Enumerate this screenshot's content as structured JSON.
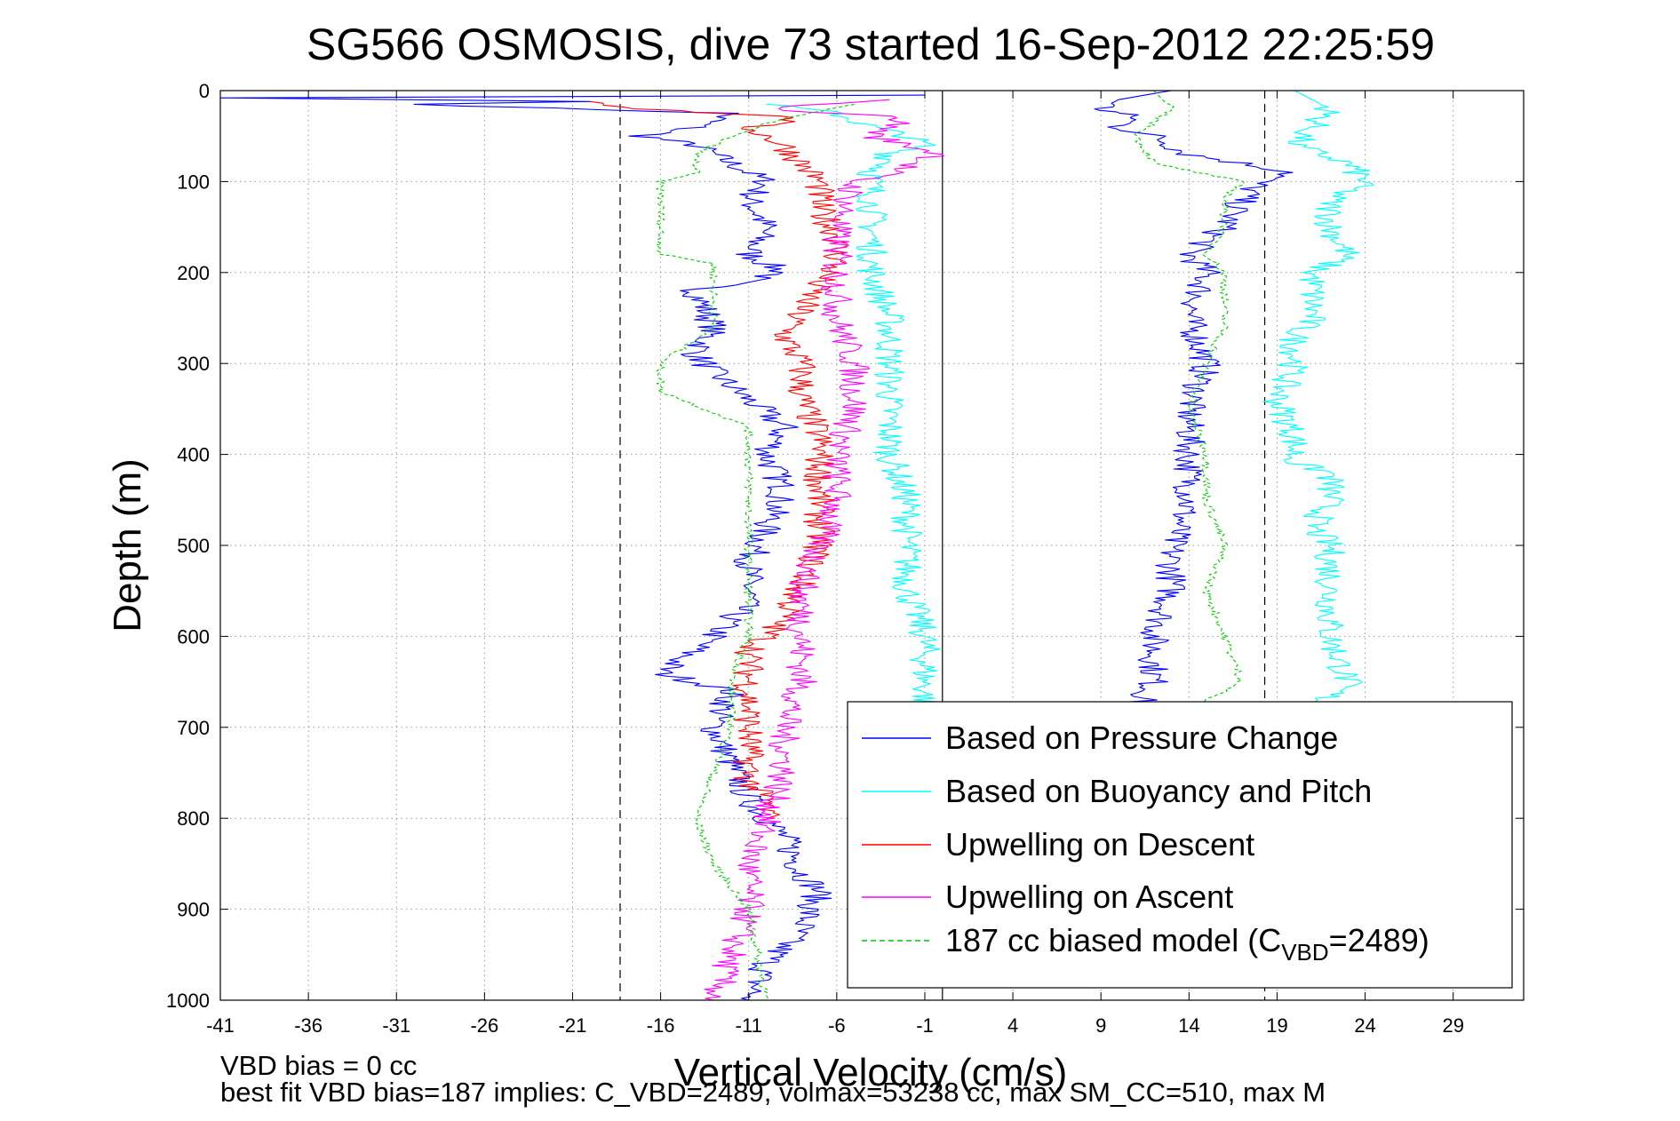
{
  "chart_data": {
    "type": "line",
    "title": "SG566 OSMOSIS, dive 73 started 16-Sep-2012 22:25:59",
    "xlabel": "Vertical Velocity (cm/s)",
    "ylabel": "Depth (m)",
    "xlim": [
      -41,
      33
    ],
    "ylim": [
      1000,
      0
    ],
    "y_reversed": true,
    "xticks": [
      -41,
      -36,
      -31,
      -26,
      -21,
      -16,
      -11,
      -6,
      -1,
      4,
      9,
      14,
      19,
      24,
      29
    ],
    "yticks": [
      0,
      100,
      200,
      300,
      400,
      500,
      600,
      700,
      800,
      900,
      1000
    ],
    "grid": true,
    "legend_position": "bottom-right",
    "vertical_lines": [
      {
        "x": -18.3,
        "style": "dashed",
        "color": "#000000"
      },
      {
        "x": 0,
        "style": "solid",
        "color": "#000000"
      },
      {
        "x": 18.3,
        "style": "dashed",
        "color": "#000000"
      }
    ],
    "series": [
      {
        "name": "Based on Pressure Change",
        "color": "#0000ff",
        "style": "solid",
        "segments": [
          {
            "depth": [
              5,
              8,
              12,
              15,
              25,
              40,
              50,
              60,
              80,
              100,
              120,
              150,
              180,
              200,
              220,
              260,
              290,
              310,
              340,
              370,
              400,
              440,
              480,
              520,
              560,
              600,
              640,
              660,
              700,
              740,
              780,
              820,
              860,
              880,
              920,
              960,
              1000
            ],
            "x": [
              -1,
              -41,
              -20,
              -30,
              -12,
              -14,
              -17,
              -14,
              -12,
              -10,
              -11,
              -10,
              -11,
              -9,
              -14,
              -13,
              -14,
              -13,
              -11,
              -9,
              -10,
              -9,
              -10,
              -11,
              -11,
              -13,
              -16,
              -12,
              -13,
              -12,
              -11,
              -9,
              -8,
              -7,
              -8,
              -10,
              -11
            ]
          },
          {
            "depth": [
              0,
              10,
              20,
              25,
              30,
              40,
              50,
              70,
              90,
              100,
              120,
              150,
              180,
              200,
              250,
              300,
              350,
              400,
              450,
              500,
              550,
              600,
              650,
              680
            ],
            "x": [
              13,
              10,
              9,
              10,
              11,
              10,
              12,
              14,
              20,
              18,
              17,
              16,
              14,
              15,
              14,
              15,
              14,
              14,
              14,
              13,
              13,
              12,
              12,
              11
            ]
          }
        ]
      },
      {
        "name": "Based on Buoyancy and Pitch",
        "color": "#00ffff",
        "style": "solid",
        "segments": [
          {
            "depth": [
              15,
              25,
              40,
              50,
              60,
              70,
              80,
              90,
              120,
              160,
              200,
              250,
              300,
              350,
              370,
              400,
              450,
              500,
              550,
              600,
              650,
              680
            ],
            "x": [
              -10,
              -6,
              -4,
              -2,
              -1,
              -3,
              -3,
              -4,
              -4,
              -4,
              -4,
              -3,
              -3,
              -3,
              -3,
              -3,
              -2,
              -2,
              -2,
              -1,
              -1,
              -1
            ]
          },
          {
            "depth": [
              0,
              20,
              40,
              60,
              80,
              100,
              120,
              150,
              180,
              200,
              250,
              270,
              300,
              340,
              380,
              410,
              420,
              450,
              480,
              500,
              550,
              600,
              650,
              680
            ],
            "x": [
              20,
              22,
              21,
              20,
              23,
              24,
              22,
              22,
              23,
              21,
              21,
              20,
              20,
              19,
              20,
              20,
              22,
              22,
              21,
              22,
              22,
              22,
              23,
              21
            ]
          }
        ]
      },
      {
        "name": "Upwelling on Descent",
        "color": "#ff0000",
        "style": "solid",
        "segments": [
          {
            "depth": [
              12,
              20,
              30,
              40,
              60,
              80,
              100,
              130,
              160,
              190,
              210,
              240,
              270,
              300,
              340,
              380,
              420,
              460,
              500,
              540,
              580,
              620,
              660,
              700,
              740,
              760,
              780,
              800
            ],
            "x": [
              -20,
              -17,
              -8,
              -11,
              -9,
              -8,
              -7,
              -7,
              -6,
              -6,
              -7,
              -8,
              -9,
              -8,
              -8,
              -7,
              -7,
              -7,
              -7,
              -8,
              -9,
              -11,
              -11,
              -11,
              -11,
              -11,
              -10,
              -10
            ]
          }
        ]
      },
      {
        "name": "Upwelling on Ascent",
        "color": "#ff00ff",
        "style": "solid",
        "segments": [
          {
            "depth": [
              10,
              20,
              30,
              50,
              70,
              90,
              100,
              150,
              200,
              250,
              300,
              350,
              400,
              450,
              500,
              550,
              600,
              650,
              700,
              750,
              800,
              850,
              900,
              950,
              1000
            ],
            "x": [
              -3,
              -10,
              -2,
              -4,
              0,
              -3,
              -5,
              -6,
              -6,
              -6,
              -5,
              -5,
              -6,
              -6,
              -7,
              -8,
              -8,
              -8,
              -9,
              -9,
              -10,
              -11,
              -11,
              -12,
              -13
            ]
          }
        ]
      },
      {
        "name": "187 cc biased model (C_VBD=2489)",
        "color": "#00cc00",
        "style": "dashed",
        "segments": [
          {
            "depth": [
              15,
              30,
              50,
              70,
              90,
              100,
              140,
              180,
              190,
              260,
              300,
              330,
              370,
              400,
              450,
              500,
              550,
              600,
              650,
              700,
              750,
              800,
              850,
              900,
              1000
            ],
            "x": [
              -5,
              -9,
              -12,
              -14,
              -14,
              -16,
              -16,
              -16,
              -13,
              -13,
              -16,
              -16,
              -11,
              -11,
              -11,
              -11,
              -11,
              -11,
              -12,
              -12,
              -13,
              -14,
              -13,
              -11,
              -10
            ]
          },
          {
            "depth": [
              0,
              20,
              50,
              80,
              100,
              120,
              150,
              180,
              200,
              260,
              300,
              350,
              400,
              450,
              500,
              550,
              600,
              650,
              680
            ],
            "x": [
              12,
              13,
              11,
              12,
              17,
              16,
              16,
              15,
              16,
              16,
              15,
              14,
              15,
              15,
              16,
              15,
              16,
              17,
              14
            ]
          }
        ]
      }
    ]
  },
  "legend": {
    "entries": [
      "Based on Pressure Change",
      "Based on Buoyancy and Pitch",
      "Upwelling on Descent",
      "Upwelling on Ascent"
    ],
    "model_prefix": "187 cc biased model (C",
    "model_sub": "VBD",
    "model_suffix": "=2489)"
  },
  "footer": {
    "bias_text": "VBD bias = 0 cc",
    "fit_text": "best fit VBD bias=187 implies: C_VBD=2489, volmax=53238 cc, max SM_CC=510, max M"
  }
}
